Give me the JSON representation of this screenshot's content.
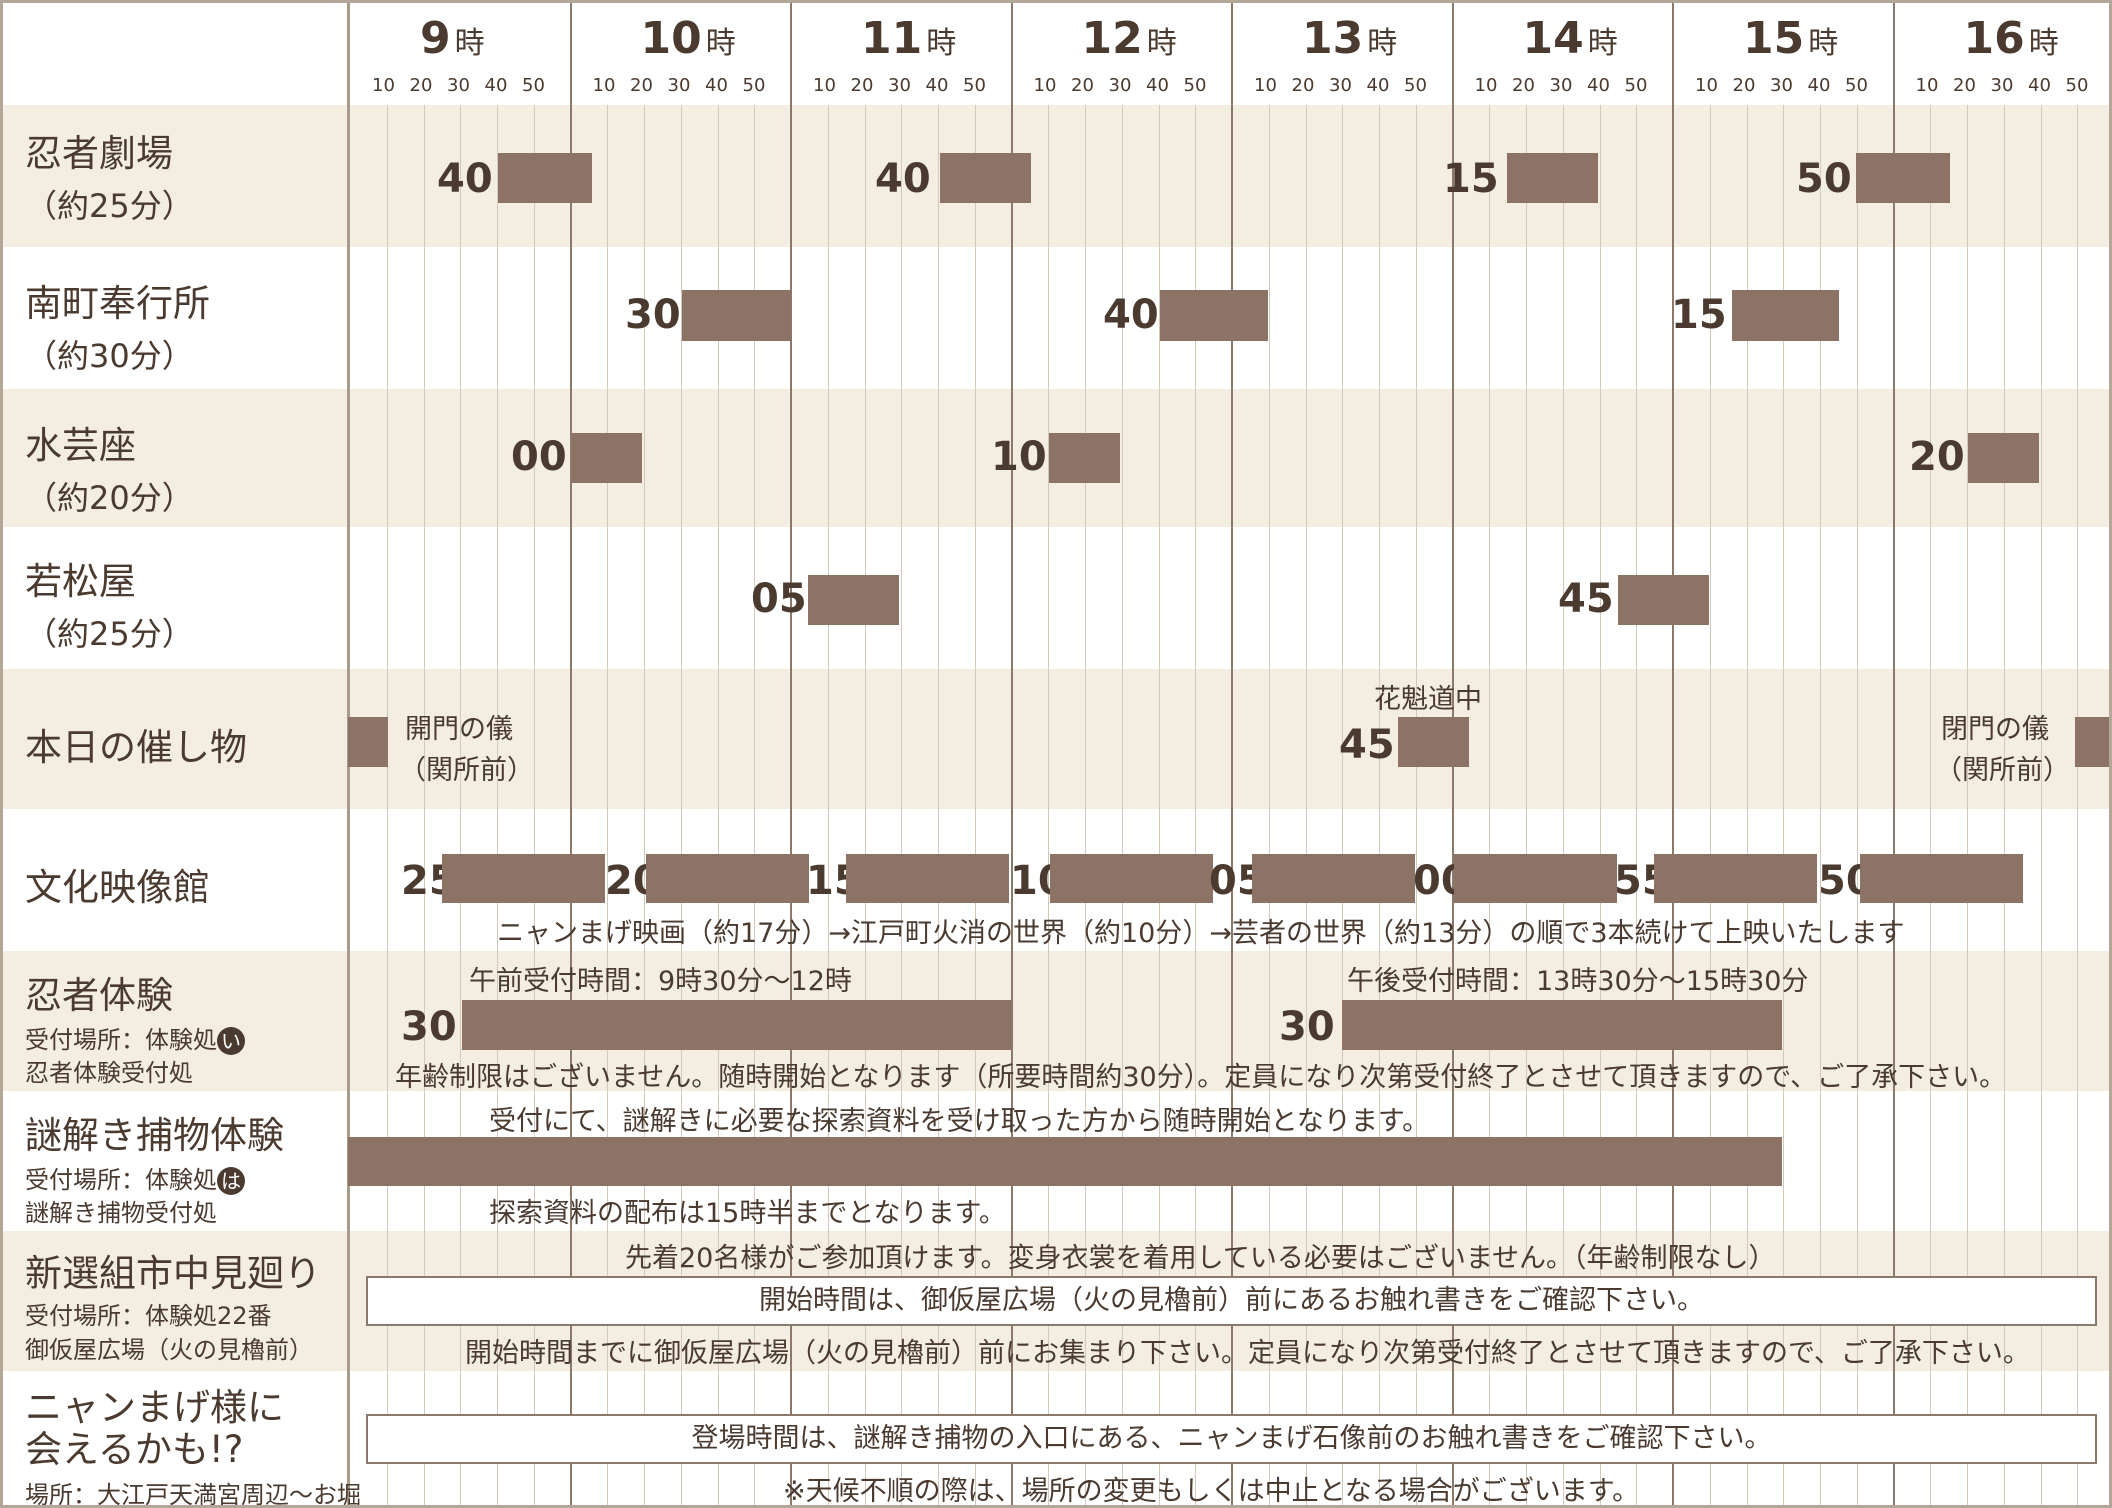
{
  "header": {
    "hours": [
      "9",
      "10",
      "11",
      "12",
      "13",
      "14",
      "15",
      "16"
    ],
    "hour_suffix": "時",
    "minute_ticks": [
      "10",
      "20",
      "30",
      "40",
      "50"
    ]
  },
  "rows": [
    {
      "title": "忍者劇場",
      "sub": "（約25分）",
      "shows": [
        {
          "label": "40"
        },
        {
          "label": "40"
        },
        {
          "label": "15"
        },
        {
          "label": "50"
        }
      ]
    },
    {
      "title": "南町奉行所",
      "sub": "（約30分）",
      "shows": [
        {
          "label": "30"
        },
        {
          "label": "40"
        },
        {
          "label": "15"
        }
      ]
    },
    {
      "title": "水芸座",
      "sub": "（約20分）",
      "shows": [
        {
          "label": "00"
        },
        {
          "label": "10"
        },
        {
          "label": "20"
        }
      ]
    },
    {
      "title": "若松屋",
      "sub": "（約25分）",
      "shows": [
        {
          "label": "05"
        },
        {
          "label": "45"
        }
      ]
    },
    {
      "title": "本日の催し物",
      "events": {
        "open_title": "開門の儀",
        "open_place": "（関所前）",
        "parade_title": "花魁道中",
        "parade_label": "45",
        "close_title": "閉門の儀",
        "close_place": "（関所前）"
      }
    },
    {
      "title": "文化映像館",
      "shows": [
        {
          "label": "25"
        },
        {
          "label": "20"
        },
        {
          "label": "15"
        },
        {
          "label": "10"
        },
        {
          "label": "05"
        },
        {
          "label": "00"
        },
        {
          "label": "55"
        },
        {
          "label": "50"
        }
      ],
      "note": "ニャンまげ映画（約17分）→江戸町火消の世界（約10分）→芸者の世界（約13分）の順で3本続けて上映いたします"
    },
    {
      "title": "忍者体験",
      "place_prefix": "受付場所：体験処",
      "place_mark": "い",
      "place2": "忍者体験受付処",
      "am_note": "午前受付時間：9時30分～12時",
      "pm_note": "午後受付時間：13時30分～15時30分",
      "am_label": "30",
      "pm_label": "30",
      "note": "年齢制限はございません。随時開始となります（所要時間約30分）。定員になり次第受付終了とさせて頂きますので、ご了承下さい。"
    },
    {
      "title": "謎解き捕物体験",
      "place_prefix": "受付場所：体験処",
      "place_mark": "は",
      "place2": "謎解き捕物受付処",
      "note_top": "受付にて、謎解きに必要な探索資料を受け取った方から随時開始となります。",
      "note_bottom": "探索資料の配布は15時半までとなります。"
    },
    {
      "title": "新選組市中見廻り",
      "place": "受付場所：体験処22番",
      "place2": "御仮屋広場（火の見櫓前）",
      "note_top": "先着20名様がご参加頂けます。変身衣裳を着用している必要はございません。（年齢制限なし）",
      "box": "開始時間は、御仮屋広場（火の見櫓前）前にあるお触れ書きをご確認下さい。",
      "note_bottom": "開始時間までに御仮屋広場（火の見櫓前）前にお集まり下さい。定員になり次第受付終了とさせて頂きますので、ご了承下さい。"
    },
    {
      "title1": "ニャンまげ様に",
      "title2": "会えるかも!?",
      "place": "場所：大江戸天満宮周辺～お堀",
      "box": "登場時間は、謎解き捕物の入口にある、ニャンまげ石像前のお触れ書きをご確認下さい。",
      "note_bottom": "※天候不順の際は、場所の変更もしくは中止となる場合がございます。"
    }
  ]
}
